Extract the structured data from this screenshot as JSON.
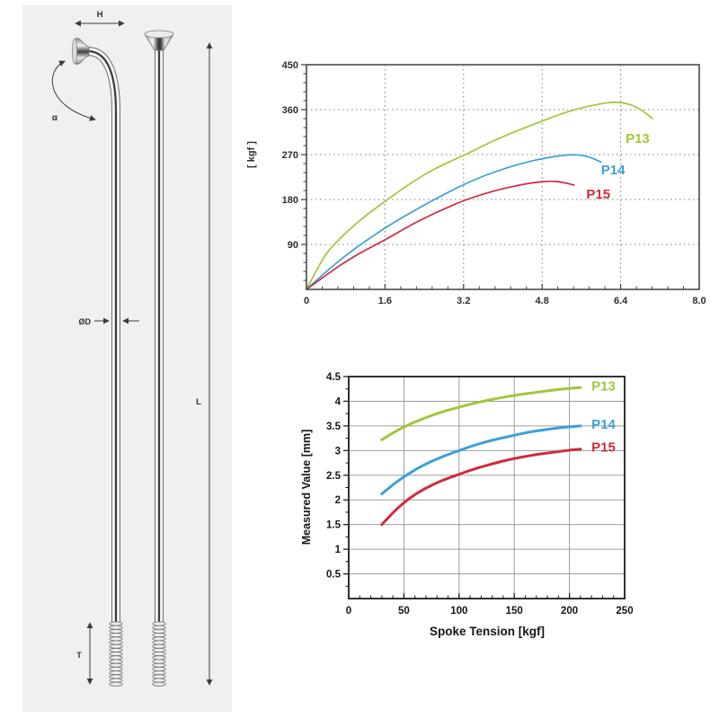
{
  "diagram": {
    "panel_bg": "#f1f0ee",
    "labels": {
      "head_width": "H",
      "angle": "α",
      "diameter": "ØD",
      "length": "L",
      "thread": "T"
    }
  },
  "chart_data": [
    {
      "type": "line",
      "title": "",
      "xlabel": "",
      "ylabel": "[ kgf ]",
      "xlim": [
        0,
        8.0
      ],
      "ylim": [
        0,
        450
      ],
      "xticks": [
        0,
        1.6,
        3.2,
        4.8,
        6.4,
        8.0
      ],
      "xtick_labels": [
        "0",
        "1.6",
        "3.2",
        "4.8",
        "6.4",
        "8.0"
      ],
      "yticks": [
        90,
        180,
        270,
        360,
        450
      ],
      "ytick_labels": [
        "90",
        "180",
        "270",
        "360",
        "450"
      ],
      "x_minor_step": 0.32,
      "y_minor_step": 18,
      "grid_style": "dotted",
      "legend_position": "inline-right",
      "series": [
        {
          "name": "P13",
          "color": "#a2c63c",
          "label_pos": [
            6.5,
            293
          ],
          "points": [
            [
              0,
              0
            ],
            [
              0.2,
              38
            ],
            [
              0.4,
              72
            ],
            [
              0.6,
              94
            ],
            [
              0.8,
              113
            ],
            [
              1.2,
              148
            ],
            [
              1.6,
              176
            ],
            [
              2.0,
              205
            ],
            [
              2.4,
              230
            ],
            [
              2.8,
              251
            ],
            [
              3.2,
              268
            ],
            [
              3.6,
              288
            ],
            [
              4.0,
              306
            ],
            [
              4.4,
              322
            ],
            [
              4.8,
              337
            ],
            [
              5.2,
              352
            ],
            [
              5.6,
              364
            ],
            [
              6.0,
              372
            ],
            [
              6.3,
              376
            ],
            [
              6.6,
              371
            ],
            [
              6.85,
              358
            ],
            [
              7.05,
              342
            ]
          ]
        },
        {
          "name": "P14",
          "color": "#3ba0d8",
          "label_pos": [
            6.0,
            230
          ],
          "points": [
            [
              0,
              0
            ],
            [
              0.4,
              36
            ],
            [
              0.8,
              68
            ],
            [
              1.2,
              97
            ],
            [
              1.6,
              123
            ],
            [
              2.0,
              147
            ],
            [
              2.4,
              169
            ],
            [
              2.8,
              190
            ],
            [
              3.2,
              210
            ],
            [
              3.6,
              227
            ],
            [
              4.0,
              241
            ],
            [
              4.4,
              253
            ],
            [
              4.8,
              262
            ],
            [
              5.1,
              267
            ],
            [
              5.4,
              270
            ],
            [
              5.6,
              269
            ],
            [
              5.8,
              264
            ],
            [
              6.0,
              255
            ]
          ]
        },
        {
          "name": "P15",
          "color": "#cf2b3e",
          "label_pos": [
            5.7,
            182
          ],
          "points": [
            [
              0,
              0
            ],
            [
              0.4,
              29
            ],
            [
              0.8,
              56
            ],
            [
              1.2,
              79
            ],
            [
              1.6,
              99
            ],
            [
              2.0,
              122
            ],
            [
              2.4,
              143
            ],
            [
              2.8,
              161
            ],
            [
              3.2,
              178
            ],
            [
              3.6,
              191
            ],
            [
              4.0,
              202
            ],
            [
              4.4,
              210
            ],
            [
              4.7,
              215
            ],
            [
              5.0,
              217
            ],
            [
              5.2,
              215
            ],
            [
              5.45,
              209
            ]
          ]
        }
      ]
    },
    {
      "type": "line",
      "title": "",
      "xlabel": "Spoke Tension [kgf]",
      "ylabel": "Measured Value [mm]",
      "xlim": [
        0,
        250
      ],
      "ylim": [
        0,
        4.5
      ],
      "xticks": [
        0,
        50,
        100,
        150,
        200,
        250
      ],
      "xtick_labels": [
        "0",
        "50",
        "100",
        "150",
        "200",
        "250"
      ],
      "yticks": [
        0.5,
        1,
        1.5,
        2,
        2.5,
        3,
        3.5,
        4,
        4.5
      ],
      "ytick_labels": [
        "0.5",
        "1",
        "1.5",
        "2",
        "2.5",
        "3",
        "3.5",
        "4",
        "4.5"
      ],
      "x_minor_step": 10,
      "y_minor_step": 0.25,
      "grid_style": "solid",
      "legend_position": "inline-right",
      "series": [
        {
          "name": "P13",
          "color": "#a2c63c",
          "label_pos": [
            220,
            4.22
          ],
          "points": [
            [
              30,
              3.22
            ],
            [
              40,
              3.36
            ],
            [
              50,
              3.48
            ],
            [
              60,
              3.58
            ],
            [
              70,
              3.67
            ],
            [
              80,
              3.75
            ],
            [
              90,
              3.82
            ],
            [
              100,
              3.88
            ],
            [
              110,
              3.94
            ],
            [
              120,
              3.99
            ],
            [
              130,
              4.04
            ],
            [
              140,
              4.08
            ],
            [
              150,
              4.12
            ],
            [
              160,
              4.15
            ],
            [
              170,
              4.18
            ],
            [
              180,
              4.21
            ],
            [
              190,
              4.24
            ],
            [
              200,
              4.26
            ],
            [
              210,
              4.28
            ]
          ]
        },
        {
          "name": "P14",
          "color": "#3ba0d8",
          "label_pos": [
            220,
            3.44
          ],
          "points": [
            [
              30,
              2.12
            ],
            [
              40,
              2.31
            ],
            [
              50,
              2.47
            ],
            [
              60,
              2.61
            ],
            [
              70,
              2.73
            ],
            [
              80,
              2.83
            ],
            [
              90,
              2.92
            ],
            [
              100,
              3.0
            ],
            [
              110,
              3.08
            ],
            [
              120,
              3.15
            ],
            [
              130,
              3.21
            ],
            [
              140,
              3.26
            ],
            [
              150,
              3.31
            ],
            [
              160,
              3.36
            ],
            [
              170,
              3.4
            ],
            [
              180,
              3.43
            ],
            [
              190,
              3.46
            ],
            [
              200,
              3.48
            ],
            [
              210,
              3.5
            ]
          ]
        },
        {
          "name": "P15",
          "color": "#cf2b3e",
          "label_pos": [
            220,
            2.98
          ],
          "points": [
            [
              30,
              1.5
            ],
            [
              40,
              1.74
            ],
            [
              50,
              1.95
            ],
            [
              60,
              2.11
            ],
            [
              70,
              2.24
            ],
            [
              80,
              2.35
            ],
            [
              90,
              2.44
            ],
            [
              100,
              2.52
            ],
            [
              110,
              2.6
            ],
            [
              120,
              2.67
            ],
            [
              130,
              2.73
            ],
            [
              140,
              2.79
            ],
            [
              150,
              2.84
            ],
            [
              160,
              2.88
            ],
            [
              170,
              2.92
            ],
            [
              180,
              2.95
            ],
            [
              190,
              2.98
            ],
            [
              200,
              3.01
            ],
            [
              210,
              3.03
            ]
          ]
        }
      ]
    }
  ]
}
